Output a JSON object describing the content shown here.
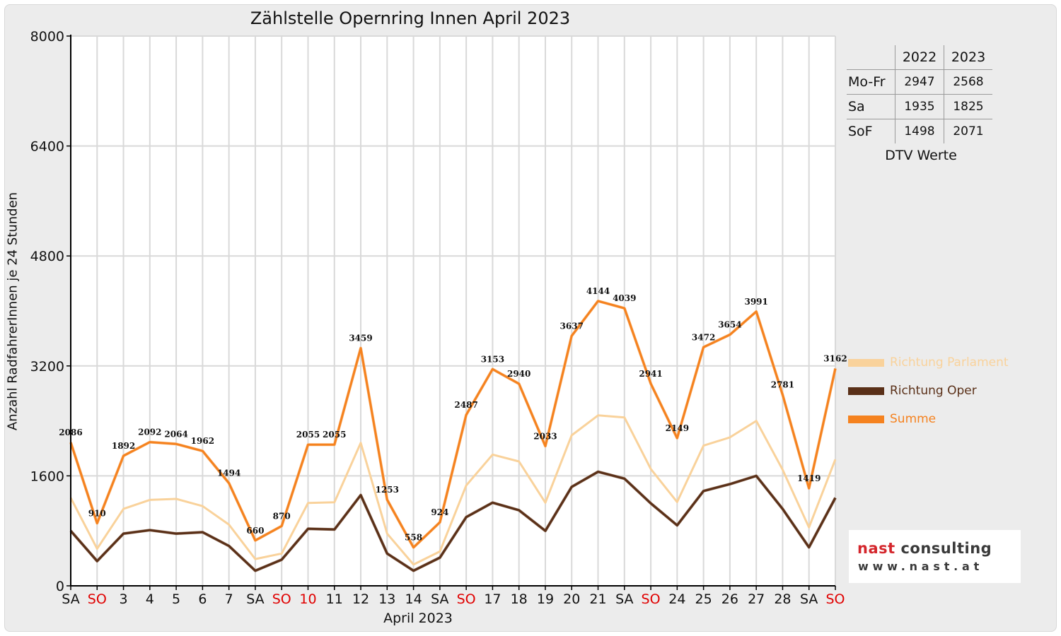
{
  "chart_data": {
    "type": "line",
    "title": "Zählstelle Opernring Innen April 2023",
    "xlabel": "April 2023",
    "ylabel": "Anzahl RadfahrerInnen je 24 Stunden",
    "ylim": [
      0,
      8000
    ],
    "yticks": [
      "0",
      "1600",
      "3200",
      "4800",
      "6400",
      "8000"
    ],
    "grid": true,
    "legend_position": "right",
    "categories": [
      "SA",
      "SO",
      "3",
      "4",
      "5",
      "6",
      "7",
      "SA",
      "SO",
      "10",
      "11",
      "12",
      "13",
      "14",
      "SA",
      "SO",
      "17",
      "18",
      "19",
      "20",
      "21",
      "SA",
      "SO",
      "24",
      "25",
      "26",
      "27",
      "28",
      "SA",
      "SO"
    ],
    "red_categories": [
      1,
      8,
      9,
      15,
      22,
      29
    ],
    "series": [
      {
        "name": "Richtung Parlament",
        "color": "#f9d29b",
        "values": [
          1280,
          540,
          1120,
          1250,
          1265,
          1160,
          890,
          390,
          470,
          1205,
          1215,
          2080,
          760,
          310,
          500,
          1460,
          1910,
          1810,
          1210,
          2190,
          2480,
          2450,
          1700,
          1220,
          2040,
          2160,
          2400,
          1690,
          850,
          1840
        ]
      },
      {
        "name": "Richtung Oper",
        "color": "#5a3018",
        "values": [
          800,
          360,
          760,
          810,
          760,
          780,
          580,
          220,
          380,
          830,
          820,
          1320,
          470,
          220,
          410,
          1000,
          1210,
          1100,
          800,
          1440,
          1660,
          1560,
          1200,
          880,
          1380,
          1480,
          1600,
          1120,
          560,
          1280
        ]
      },
      {
        "name": "Summe",
        "color": "#f5821f",
        "values": [
          2086,
          910,
          1892,
          2092,
          2064,
          1962,
          1494,
          660,
          870,
          2055,
          2055,
          3459,
          1253,
          558,
          924,
          2487,
          3153,
          2940,
          2033,
          3637,
          4144,
          4039,
          2941,
          2149,
          3472,
          3654,
          3991,
          2781,
          1419,
          3162
        ]
      }
    ],
    "data_labels": [
      "2086",
      "910",
      "1892",
      "2092",
      "2064",
      "1962",
      "1494",
      "660",
      "870",
      "2055",
      "2055",
      "3459",
      "1253",
      "558",
      "924",
      "2487",
      "3153",
      "2940",
      "2033",
      "3637",
      "4144",
      "4039",
      "2941",
      "2149",
      "3472",
      "3654",
      "3991",
      "2781",
      "1419",
      "3162"
    ]
  },
  "dtv_table": {
    "headers": [
      "",
      "2022",
      "2023"
    ],
    "rows": [
      {
        "label": "Mo-Fr",
        "v2022": "2947",
        "v2023": "2568"
      },
      {
        "label": "Sa",
        "v2022": "1935",
        "v2023": "1825"
      },
      {
        "label": "SoF",
        "v2022": "1498",
        "v2023": "2071"
      }
    ],
    "caption": "DTV Werte"
  },
  "logo": {
    "word1": "nast",
    "word2": "consulting",
    "url": "www.nast.at"
  }
}
